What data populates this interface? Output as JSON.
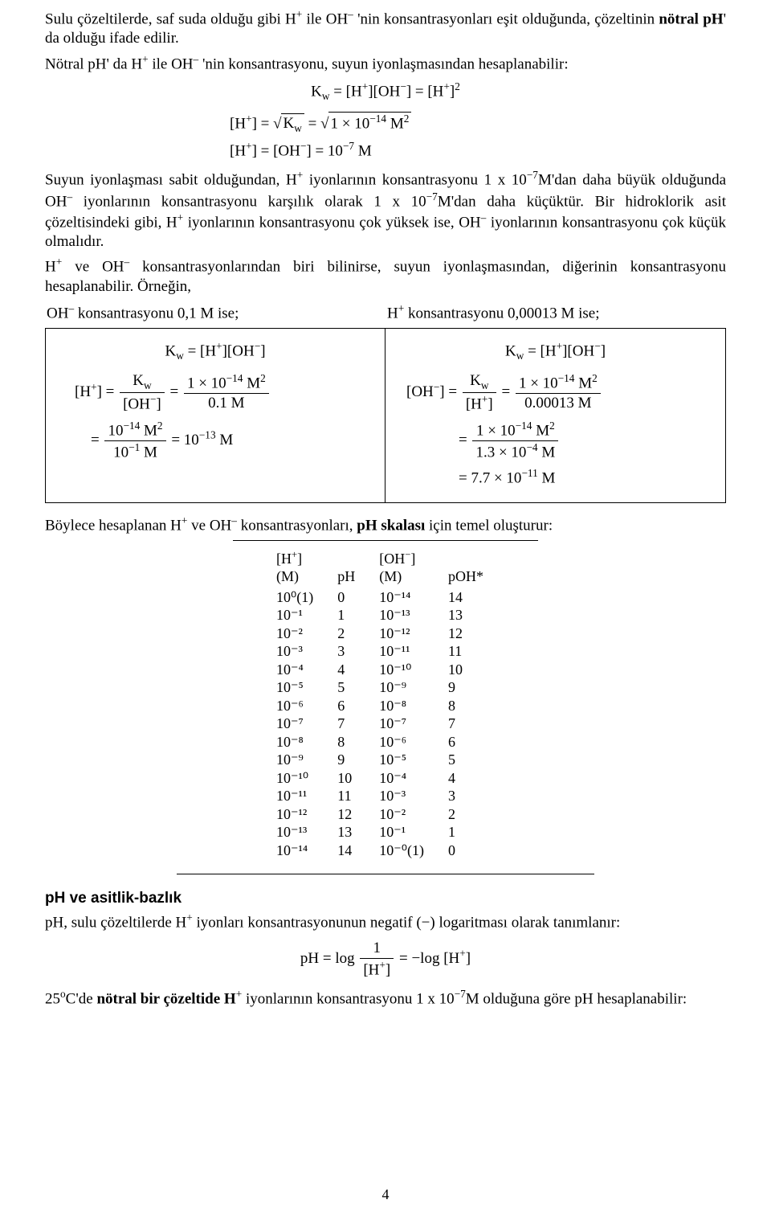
{
  "p1a": "Sulu çözeltilerde, saf suda olduğu gibi H",
  "p1b": " ile OH",
  "p1c": "'nin konsantrasyonları eşit olduğunda, çözeltinin ",
  "p1d": "nötral pH",
  "p1e": "' da olduğu ifade edilir.",
  "p2a": "Nötral pH' da H",
  "p2b": " ile OH",
  "p2c": "'nin konsantrasyonu, suyun iyonlaşmasından hesaplanabilir:",
  "eq1": "K",
  "eq1b": " = [H",
  "eq1c": "][OH",
  "eq1d": "] = [H",
  "eq1e": "]",
  "eq2a": "[H",
  "eq2b": "] = ",
  "eq2c": "K",
  "eq2d": " = ",
  "eq2e": "1 × 10",
  "eq2f": " M",
  "eq3a": "[H",
  "eq3b": "] = [OH",
  "eq3c": "] = 10",
  "eq3d": " M",
  "p3a": "Suyun iyonlaşması sabit olduğundan, H",
  "p3b": " iyonlarının konsantrasyonu 1 x 10",
  "p3c": "M'dan daha büyük olduğunda OH",
  "p3d": " iyonlarının konsantrasyonu karşılık olarak 1 x 10",
  "p3e": "M'dan daha küçüktür. Bir hidroklorik asit çözeltisindeki gibi, H",
  "p3f": " iyonlarının konsantrasyonu çok yüksek ise, OH",
  "p3g": " iyonlarının konsantrasyonu çok küçük olmalıdır.",
  "p4a": "H",
  "p4b": " ve OH",
  "p4c": " konsantrasyonlarından biri bilinirse, suyun iyonlaşmasından, diğerinin konsantrasyonu hesaplanabilir. Örneğin,",
  "leftHead": "OH",
  "leftHeadB": " konsantrasyonu 0,1 M ise;",
  "rightHead": "H",
  "rightHeadB": " konsantrasyonu 0,00013 M ise;",
  "cell_eqA": "K",
  "cell_eqAb": " = [H",
  "cell_eqAc": "][OH",
  "cell_eqAd": "]",
  "L2a": "[H",
  "L2b": "] = ",
  "Lnum1": "K",
  "Lden1": "[OH",
  "Lden1b": "]",
  "Lnum2": "1 × 10",
  "Lnum2b": " M",
  "Lden2": "0.1 M",
  "L3a": "= ",
  "L3num": "10",
  "L3numb": " M",
  "L3den": "10",
  "L3denb": " M",
  "L3r": " = 10",
  "L3rb": " M",
  "R2a": "[OH",
  "R2b": "] = ",
  "Rnum1": "K",
  "Rden1": "[H",
  "Rden1b": "]",
  "Rnum2": "1 × 10",
  "Rnum2b": " M",
  "Rden2": "0.00013 M",
  "R3a": "= ",
  "R3num": "1 × 10",
  "R3numb": " M",
  "R3den": "1.3 × 10",
  "R3denb": " M",
  "R4": " = 7.7 × 10",
  "R4b": " M",
  "p5a": "Böylece hesaplanan H",
  "p5b": " ve OH",
  "p5c": " konsantrasyonları, ",
  "p5d": "pH skalası",
  "p5e": " için temel oluşturur:",
  "th1a": "[H",
  "th1b": "]",
  "th1u": "(M)",
  "th2": "pH",
  "th3a": "[OH",
  "th3b": "]",
  "th3u": "(M)",
  "th4": "pOH*",
  "table": {
    "columns": [
      "[H+] (M)",
      "pH",
      "[OH-] (M)",
      "pOH*"
    ],
    "rows": [
      [
        "10⁰(1)",
        "0",
        "10⁻¹⁴",
        "14"
      ],
      [
        "10⁻¹",
        "1",
        "10⁻¹³",
        "13"
      ],
      [
        "10⁻²",
        "2",
        "10⁻¹²",
        "12"
      ],
      [
        "10⁻³",
        "3",
        "10⁻¹¹",
        "11"
      ],
      [
        "10⁻⁴",
        "4",
        "10⁻¹⁰",
        "10"
      ],
      [
        "10⁻⁵",
        "5",
        "10⁻⁹",
        "9"
      ],
      [
        "10⁻⁶",
        "6",
        "10⁻⁸",
        "8"
      ],
      [
        "10⁻⁷",
        "7",
        "10⁻⁷",
        "7"
      ],
      [
        "10⁻⁸",
        "8",
        "10⁻⁶",
        "6"
      ],
      [
        "10⁻⁹",
        "9",
        "10⁻⁵",
        "5"
      ],
      [
        "10⁻¹⁰",
        "10",
        "10⁻⁴",
        "4"
      ],
      [
        "10⁻¹¹",
        "11",
        "10⁻³",
        "3"
      ],
      [
        "10⁻¹²",
        "12",
        "10⁻²",
        "2"
      ],
      [
        "10⁻¹³",
        "13",
        "10⁻¹",
        "1"
      ],
      [
        "10⁻¹⁴",
        "14",
        "10⁻⁰(1)",
        "0"
      ]
    ]
  },
  "sec": "pH ve asitlik-bazlık",
  "p6a": "pH, sulu çözeltilerde H",
  "p6b": " iyonları konsantrasyonunun negatif (−) logaritması olarak tanımlanır:",
  "eqF1": "pH = log ",
  "eqF1n": "1",
  "eqF1d": "[H",
  "eqF1db": "]",
  "eqF1r": " = −log [H",
  "eqF1rb": "]",
  "p7a": "25",
  "p7b": "C'de ",
  "p7c": "nötral bir çözeltide H",
  "p7d": " iyonlarının konsantrasyonu 1 x 10",
  "p7e": "M olduğuna göre pH hesaplanabilir:",
  "pagenum": "4"
}
